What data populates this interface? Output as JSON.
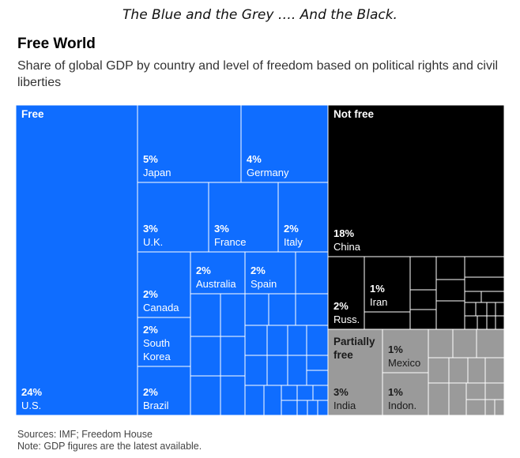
{
  "caption": "The Blue and the Grey …. And the Black.",
  "title": "Free World",
  "subtitle": "Share of global GDP by country and level of freedom based on political rights and civil liberties",
  "footer": {
    "sources": "Sources: IMF; Freedom House",
    "note": "Note: GDP figures are the latest available."
  },
  "chart_data": {
    "type": "treemap",
    "title": "Free World",
    "colors": {
      "Free": "#0f6dff",
      "Not free": "#000000",
      "Partially free": "#9a9a9a"
    },
    "groups": [
      {
        "name": "Free",
        "items": [
          {
            "name": "U.S.",
            "value": 24,
            "label": "24%"
          },
          {
            "name": "Japan",
            "value": 5,
            "label": "5%"
          },
          {
            "name": "Germany",
            "value": 4,
            "label": "4%"
          },
          {
            "name": "U.K.",
            "value": 3,
            "label": "3%"
          },
          {
            "name": "France",
            "value": 3,
            "label": "3%"
          },
          {
            "name": "Italy",
            "value": 2,
            "label": "2%"
          },
          {
            "name": "Canada",
            "value": 2,
            "label": "2%"
          },
          {
            "name": "Australia",
            "value": 2,
            "label": "2%"
          },
          {
            "name": "Spain",
            "value": 2,
            "label": "2%"
          },
          {
            "name": "South Korea",
            "value": 2,
            "label": "2%"
          },
          {
            "name": "Brazil",
            "value": 2,
            "label": "2%"
          }
        ]
      },
      {
        "name": "Not free",
        "items": [
          {
            "name": "China",
            "value": 18,
            "label": "18%"
          },
          {
            "name": "Russ.",
            "value": 2,
            "label": "2%"
          },
          {
            "name": "Iran",
            "value": 1,
            "label": "1%"
          }
        ]
      },
      {
        "name": "Partially free",
        "items": [
          {
            "name": "India",
            "value": 3,
            "label": "3%"
          },
          {
            "name": "Mexico",
            "value": 1,
            "label": "1%"
          },
          {
            "name": "Indon.",
            "value": 1,
            "label": "1%"
          }
        ]
      }
    ]
  }
}
